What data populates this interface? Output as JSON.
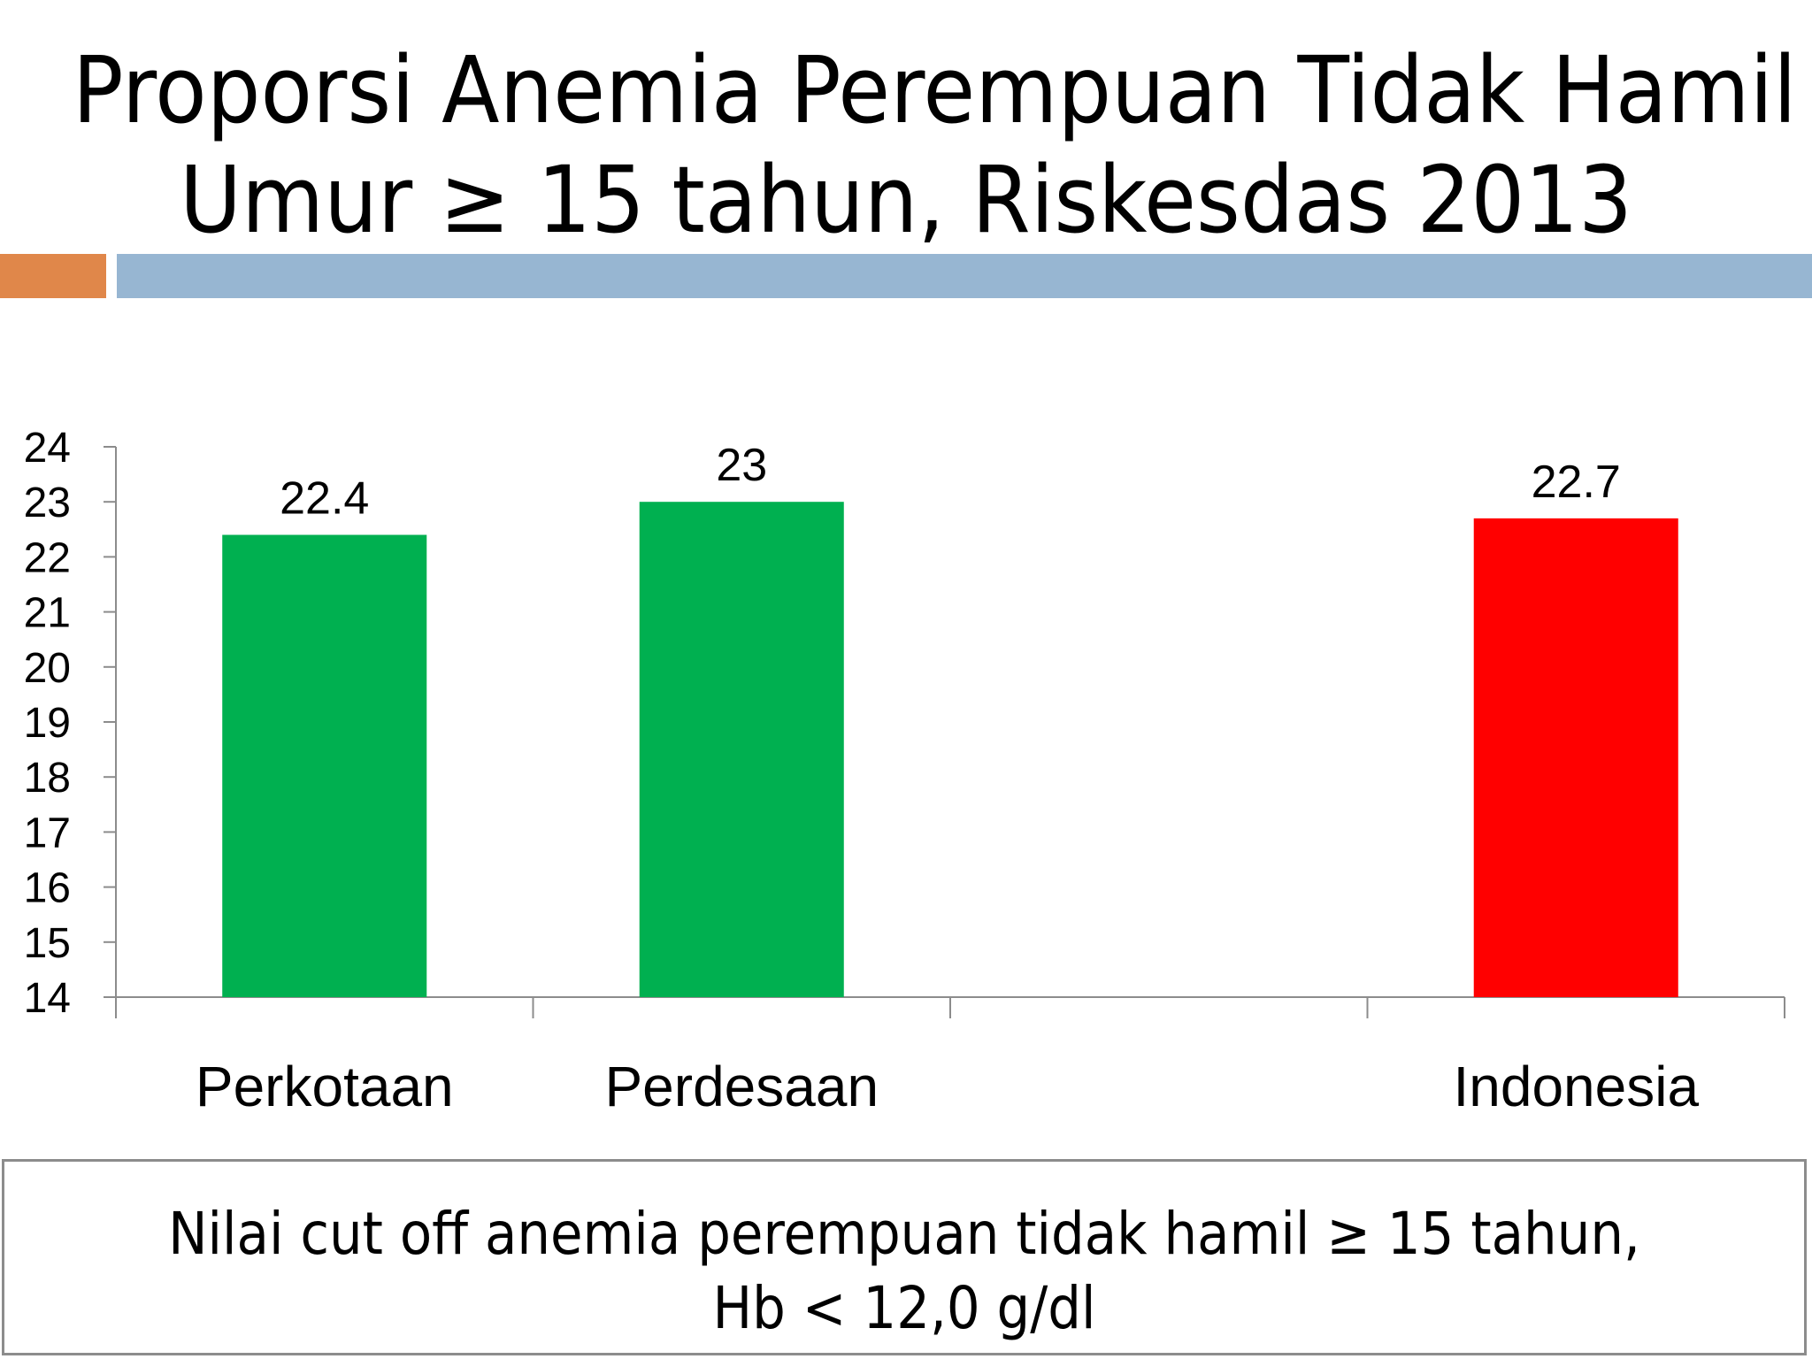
{
  "slide": {
    "title_line1": "Proporsi Anemia Perempuan Tidak Hamil",
    "title_line2": "Umur ≥ 15 tahun, Riskesdas 2013",
    "note_line1": "Nilai cut off anemia perempuan tidak hamil ≥ 15 tahun,",
    "note_line2": "Hb < 12,0 g/dl"
  },
  "colors": {
    "accent_orange": "#e0874a",
    "accent_blue": "#97b6d2",
    "bar_green": "#00b050",
    "bar_red": "#ff0000",
    "axis": "#8c8c8c"
  },
  "chart_data": {
    "type": "bar",
    "title": "",
    "xlabel": "",
    "ylabel": "",
    "categories": [
      "Perkotaan",
      "Perdesaan",
      "",
      "Indonesia"
    ],
    "values": [
      22.4,
      23,
      null,
      22.7
    ],
    "value_labels": [
      "22.4",
      "23",
      "",
      "22.7"
    ],
    "bar_colors": [
      "#00b050",
      "#00b050",
      null,
      "#ff0000"
    ],
    "ylim": [
      14,
      24
    ],
    "yticks": [
      14,
      15,
      16,
      17,
      18,
      19,
      20,
      21,
      22,
      23,
      24
    ],
    "grid": false,
    "legend": "none"
  }
}
